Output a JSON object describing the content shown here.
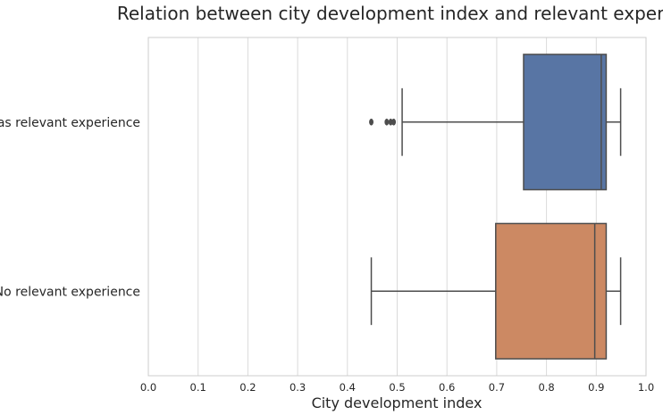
{
  "chart_data": {
    "type": "boxplot",
    "orientation": "horizontal",
    "title": "Relation between city development index and relevant experience",
    "xlabel": "City development index",
    "ylabel": "",
    "xlim": [
      0.0,
      1.0
    ],
    "xticks": [
      "0.0",
      "0.1",
      "0.2",
      "0.3",
      "0.4",
      "0.5",
      "0.6",
      "0.7",
      "0.8",
      "0.9",
      "1.0"
    ],
    "grid": "vertical",
    "categories": [
      "Has relevant experience",
      "No relevant experience"
    ],
    "boxes": [
      {
        "category": "Has relevant experience",
        "color": "#5875a4",
        "whisker_low": 0.51,
        "q1": 0.754,
        "median": 0.91,
        "q3": 0.92,
        "whisker_high": 0.949,
        "outliers": [
          0.448,
          0.479,
          0.487,
          0.493
        ]
      },
      {
        "category": "No relevant experience",
        "color": "#cc8963",
        "whisker_low": 0.448,
        "q1": 0.698,
        "median": 0.897,
        "q3": 0.92,
        "whisker_high": 0.949,
        "outliers": []
      }
    ]
  }
}
